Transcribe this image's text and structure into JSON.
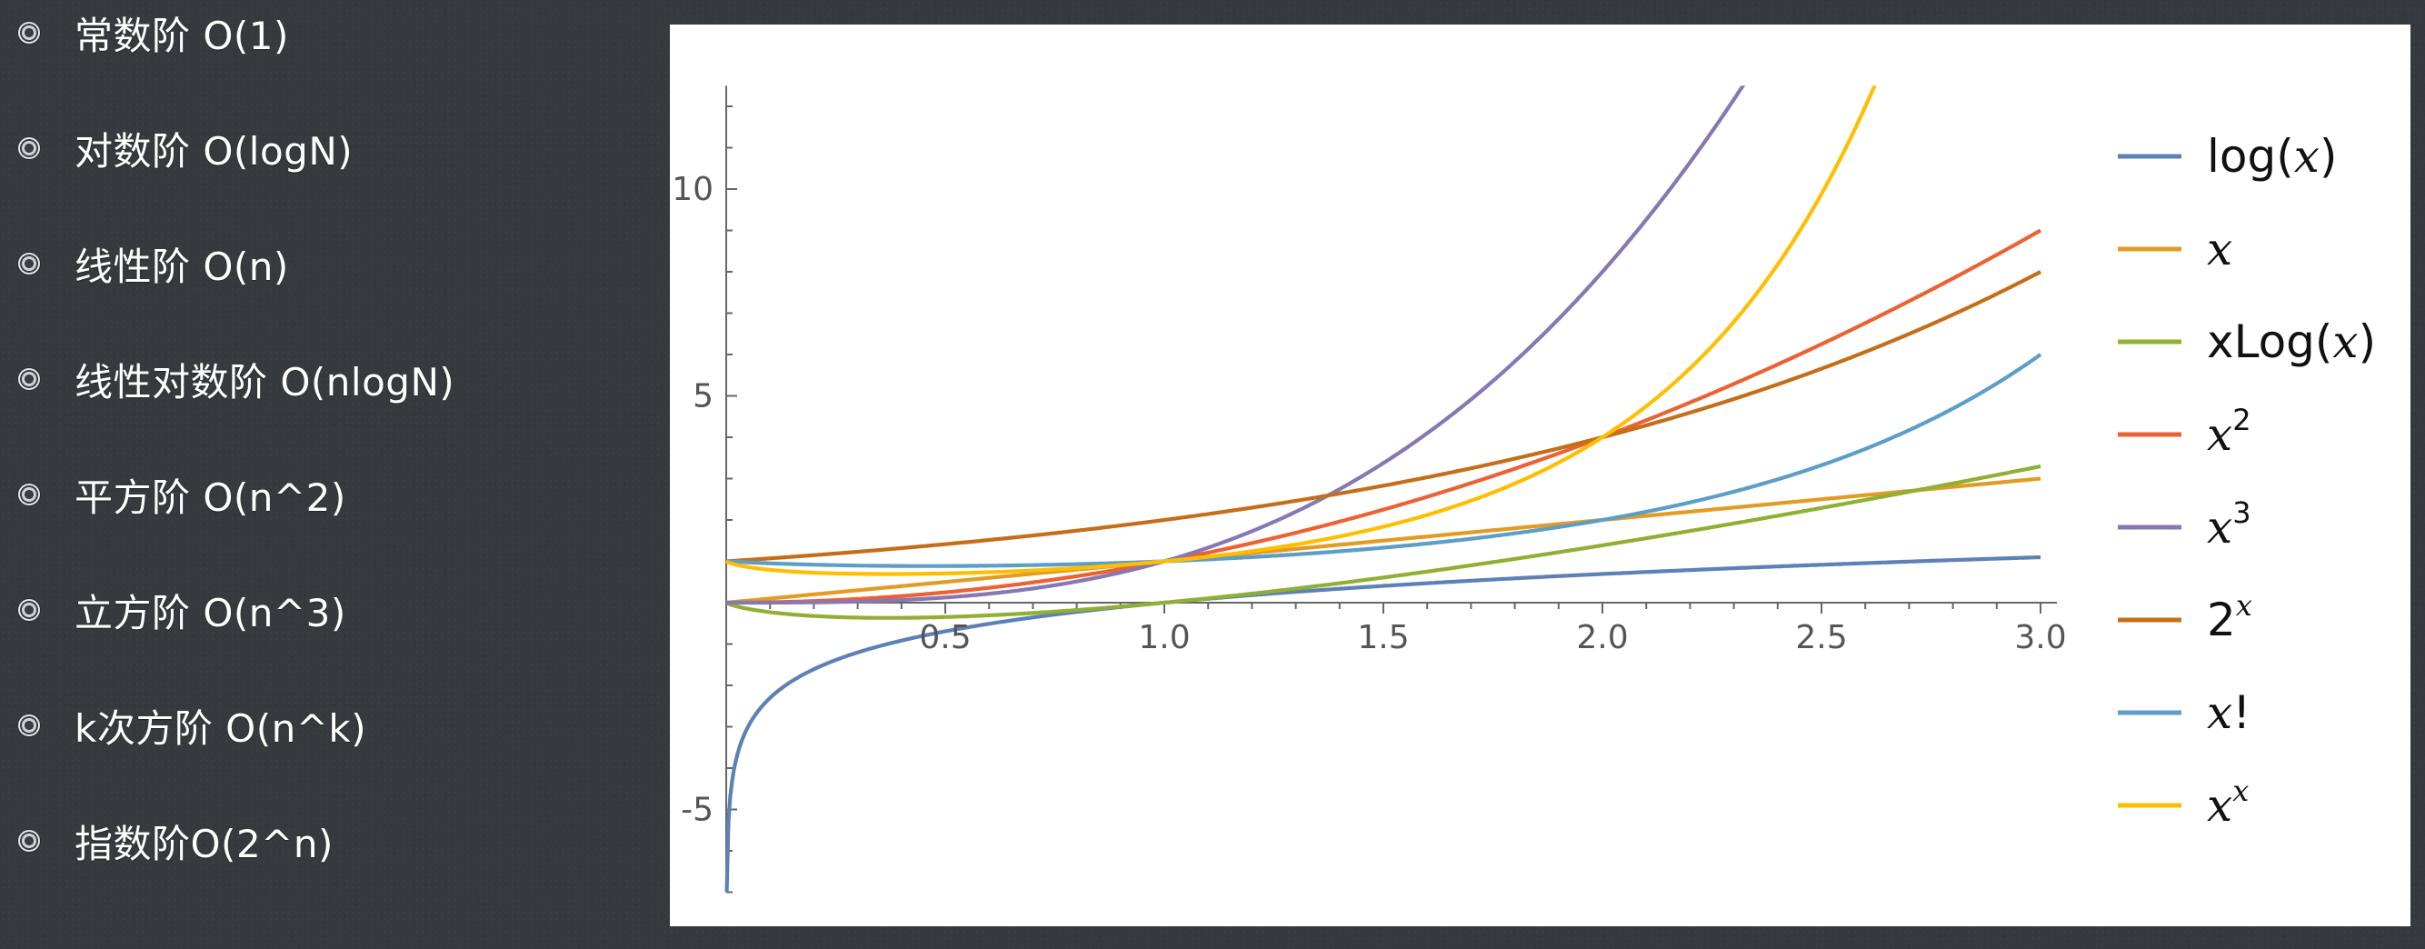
{
  "bullets": [
    {
      "label": "常数阶 O(1)"
    },
    {
      "label": "对数阶 O(logN)"
    },
    {
      "label": "线性阶 O(n)"
    },
    {
      "label": "线性对数阶 O(nlogN)"
    },
    {
      "label": "平方阶 O(n^2)"
    },
    {
      "label": "立方阶 O(n^3)"
    },
    {
      "label": "k次方阶 O(n^k)"
    },
    {
      "label": "指数阶O(2^n)"
    }
  ],
  "chart_data": {
    "type": "line",
    "title": "",
    "xlabel": "",
    "ylabel": "",
    "xlim": [
      0,
      3.0
    ],
    "ylim": [
      -7,
      12.5
    ],
    "grid": false,
    "legend_position": "right",
    "x_ticks": [
      "0.5",
      "1.0",
      "1.5",
      "2.0",
      "2.5",
      "3.0"
    ],
    "y_ticks": [
      "10",
      "5",
      "-5"
    ],
    "series": [
      {
        "name": "log(x)",
        "legend": {
          "base": "log(",
          "var": "x",
          "tail": ")",
          "sup": ""
        },
        "color": "#5e81b5",
        "func": "log",
        "points": [
          [
            0.001,
            -6.91
          ],
          [
            0.1,
            -2.3
          ],
          [
            0.5,
            -0.69
          ],
          [
            1.0,
            0.0
          ],
          [
            1.5,
            0.41
          ],
          [
            2.0,
            0.69
          ],
          [
            2.5,
            0.92
          ],
          [
            3.0,
            1.1
          ]
        ]
      },
      {
        "name": "x",
        "legend": {
          "base": "",
          "var": "x",
          "tail": "",
          "sup": ""
        },
        "color": "#e19c24",
        "func": "x",
        "points": [
          [
            0,
            0
          ],
          [
            1,
            1
          ],
          [
            2,
            2
          ],
          [
            3,
            3
          ]
        ]
      },
      {
        "name": "xLog(x)",
        "legend": {
          "base": "xLog(",
          "var": "x",
          "tail": ")",
          "sup": ""
        },
        "color": "#8fb032",
        "func": "xlogx",
        "points": [
          [
            0.001,
            -0.007
          ],
          [
            0.37,
            -0.37
          ],
          [
            1.0,
            0.0
          ],
          [
            2.0,
            1.39
          ],
          [
            3.0,
            3.3
          ]
        ]
      },
      {
        "name": "x^2",
        "legend": {
          "base": "",
          "var": "x",
          "tail": "",
          "sup": "2"
        },
        "color": "#eb6235",
        "func": "x2",
        "points": [
          [
            0,
            0
          ],
          [
            1,
            1
          ],
          [
            2,
            4
          ],
          [
            3,
            9
          ]
        ]
      },
      {
        "name": "x^3",
        "legend": {
          "base": "",
          "var": "x",
          "tail": "",
          "sup": "3"
        },
        "color": "#8778b3",
        "func": "x3",
        "points": [
          [
            0,
            0
          ],
          [
            1,
            1
          ],
          [
            2,
            8
          ],
          [
            2.29,
            12
          ]
        ]
      },
      {
        "name": "2^x",
        "legend": {
          "base": "2",
          "var": "",
          "tail": "",
          "sup": "x"
        },
        "color": "#c56e1a",
        "func": "exp2",
        "points": [
          [
            0,
            1
          ],
          [
            1,
            2
          ],
          [
            2,
            4
          ],
          [
            3,
            8
          ]
        ]
      },
      {
        "name": "x!",
        "legend": {
          "base": "",
          "var": "x",
          "tail": "!",
          "sup": ""
        },
        "color": "#5d9ec7",
        "func": "fact",
        "points": [
          [
            0,
            1
          ],
          [
            0.5,
            0.89
          ],
          [
            1,
            1
          ],
          [
            2,
            2
          ],
          [
            3,
            6
          ]
        ]
      },
      {
        "name": "x^x",
        "legend": {
          "base": "",
          "var": "x",
          "tail": "",
          "sup": "x"
        },
        "color": "#ffbf00",
        "func": "xx",
        "points": [
          [
            0,
            1
          ],
          [
            0.37,
            0.69
          ],
          [
            1,
            1
          ],
          [
            2,
            4
          ],
          [
            2.6,
            12
          ]
        ]
      }
    ]
  }
}
